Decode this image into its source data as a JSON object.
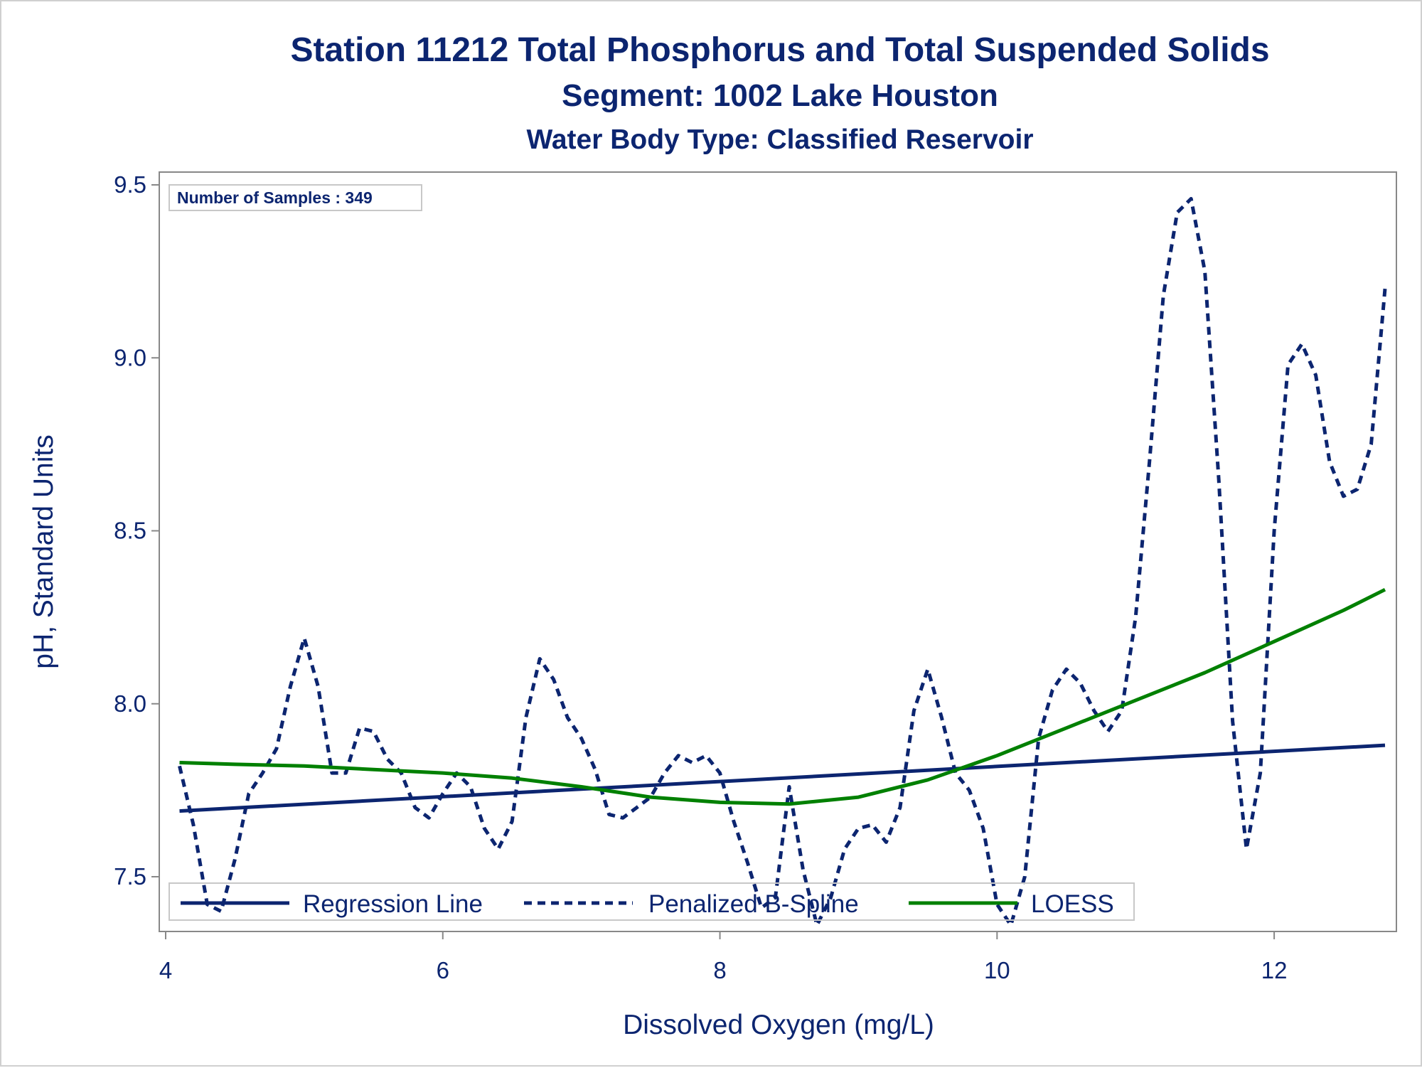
{
  "chart_data": {
    "type": "line",
    "title": "Station 11212  Total Phosphorus and Total Suspended Solids",
    "subtitle": "Segment: 1002  Lake Houston",
    "subtitle2": "Water Body Type: Classified Reservoir",
    "xlabel": "Dissolved Oxygen (mg/L)",
    "ylabel": "pH, Standard Units",
    "xlim": [
      4,
      13.0
    ],
    "ylim": [
      7.35,
      9.55
    ],
    "xticks": [
      4,
      6,
      8,
      10,
      12
    ],
    "yticks": [
      7.5,
      8.0,
      8.5,
      9.0,
      9.5
    ],
    "xtick_labels": [
      "4",
      "6",
      "8",
      "10",
      "12"
    ],
    "ytick_labels": [
      "7.5",
      "8.0",
      "8.5",
      "9.0",
      "9.5"
    ],
    "annotation": "Number of Samples : 349",
    "legend_position": "bottom-inside",
    "colors": {
      "regression": "#0c2570",
      "spline": "#0c2570",
      "loess": "#008000",
      "text": "#0c2570"
    },
    "series": [
      {
        "name": "Regression Line",
        "style": "solid",
        "x": [
          4.1,
          12.8
        ],
        "y": [
          7.69,
          7.88
        ]
      },
      {
        "name": "Penalized B-Spline",
        "style": "dashed",
        "x": [
          4.1,
          4.2,
          4.3,
          4.4,
          4.5,
          4.6,
          4.7,
          4.8,
          4.9,
          5.0,
          5.1,
          5.2,
          5.3,
          5.4,
          5.5,
          5.6,
          5.7,
          5.8,
          5.9,
          6.0,
          6.1,
          6.2,
          6.3,
          6.4,
          6.5,
          6.6,
          6.7,
          6.8,
          6.9,
          7.0,
          7.1,
          7.2,
          7.3,
          7.4,
          7.5,
          7.6,
          7.7,
          7.8,
          7.9,
          8.0,
          8.1,
          8.2,
          8.3,
          8.4,
          8.5,
          8.6,
          8.7,
          8.8,
          8.9,
          9.0,
          9.1,
          9.2,
          9.3,
          9.4,
          9.5,
          9.6,
          9.7,
          9.8,
          9.9,
          10.0,
          10.1,
          10.2,
          10.3,
          10.4,
          10.5,
          10.6,
          10.7,
          10.8,
          10.9,
          11.0,
          11.1,
          11.2,
          11.3,
          11.4,
          11.5,
          11.6,
          11.7,
          11.8,
          11.9,
          12.0,
          12.1,
          12.2,
          12.3,
          12.4,
          12.5,
          12.6,
          12.7,
          12.8
        ],
        "y": [
          7.82,
          7.65,
          7.42,
          7.4,
          7.55,
          7.74,
          7.8,
          7.87,
          8.05,
          8.19,
          8.05,
          7.8,
          7.8,
          7.93,
          7.92,
          7.84,
          7.8,
          7.7,
          7.67,
          7.74,
          7.8,
          7.76,
          7.64,
          7.58,
          7.66,
          7.96,
          8.13,
          8.07,
          7.96,
          7.9,
          7.81,
          7.68,
          7.67,
          7.7,
          7.73,
          7.8,
          7.85,
          7.83,
          7.85,
          7.8,
          7.66,
          7.54,
          7.41,
          7.44,
          7.76,
          7.52,
          7.36,
          7.44,
          7.58,
          7.64,
          7.65,
          7.6,
          7.7,
          7.98,
          8.1,
          7.96,
          7.8,
          7.75,
          7.64,
          7.42,
          7.36,
          7.5,
          7.9,
          8.04,
          8.1,
          8.06,
          7.98,
          7.92,
          7.98,
          8.25,
          8.7,
          9.18,
          9.42,
          9.46,
          9.25,
          8.65,
          7.95,
          7.58,
          7.8,
          8.5,
          8.98,
          9.04,
          8.95,
          8.7,
          8.6,
          8.62,
          8.75,
          9.2
        ]
      },
      {
        "name": "LOESS",
        "style": "solid",
        "x": [
          4.1,
          4.5,
          5.0,
          5.5,
          6.0,
          6.5,
          7.0,
          7.5,
          8.0,
          8.5,
          9.0,
          9.5,
          10.0,
          10.5,
          11.0,
          11.5,
          12.0,
          12.5,
          12.8
        ],
        "y": [
          7.83,
          7.825,
          7.82,
          7.81,
          7.8,
          7.785,
          7.76,
          7.73,
          7.715,
          7.71,
          7.73,
          7.78,
          7.85,
          7.93,
          8.01,
          8.09,
          8.18,
          8.27,
          8.33
        ]
      }
    ]
  }
}
